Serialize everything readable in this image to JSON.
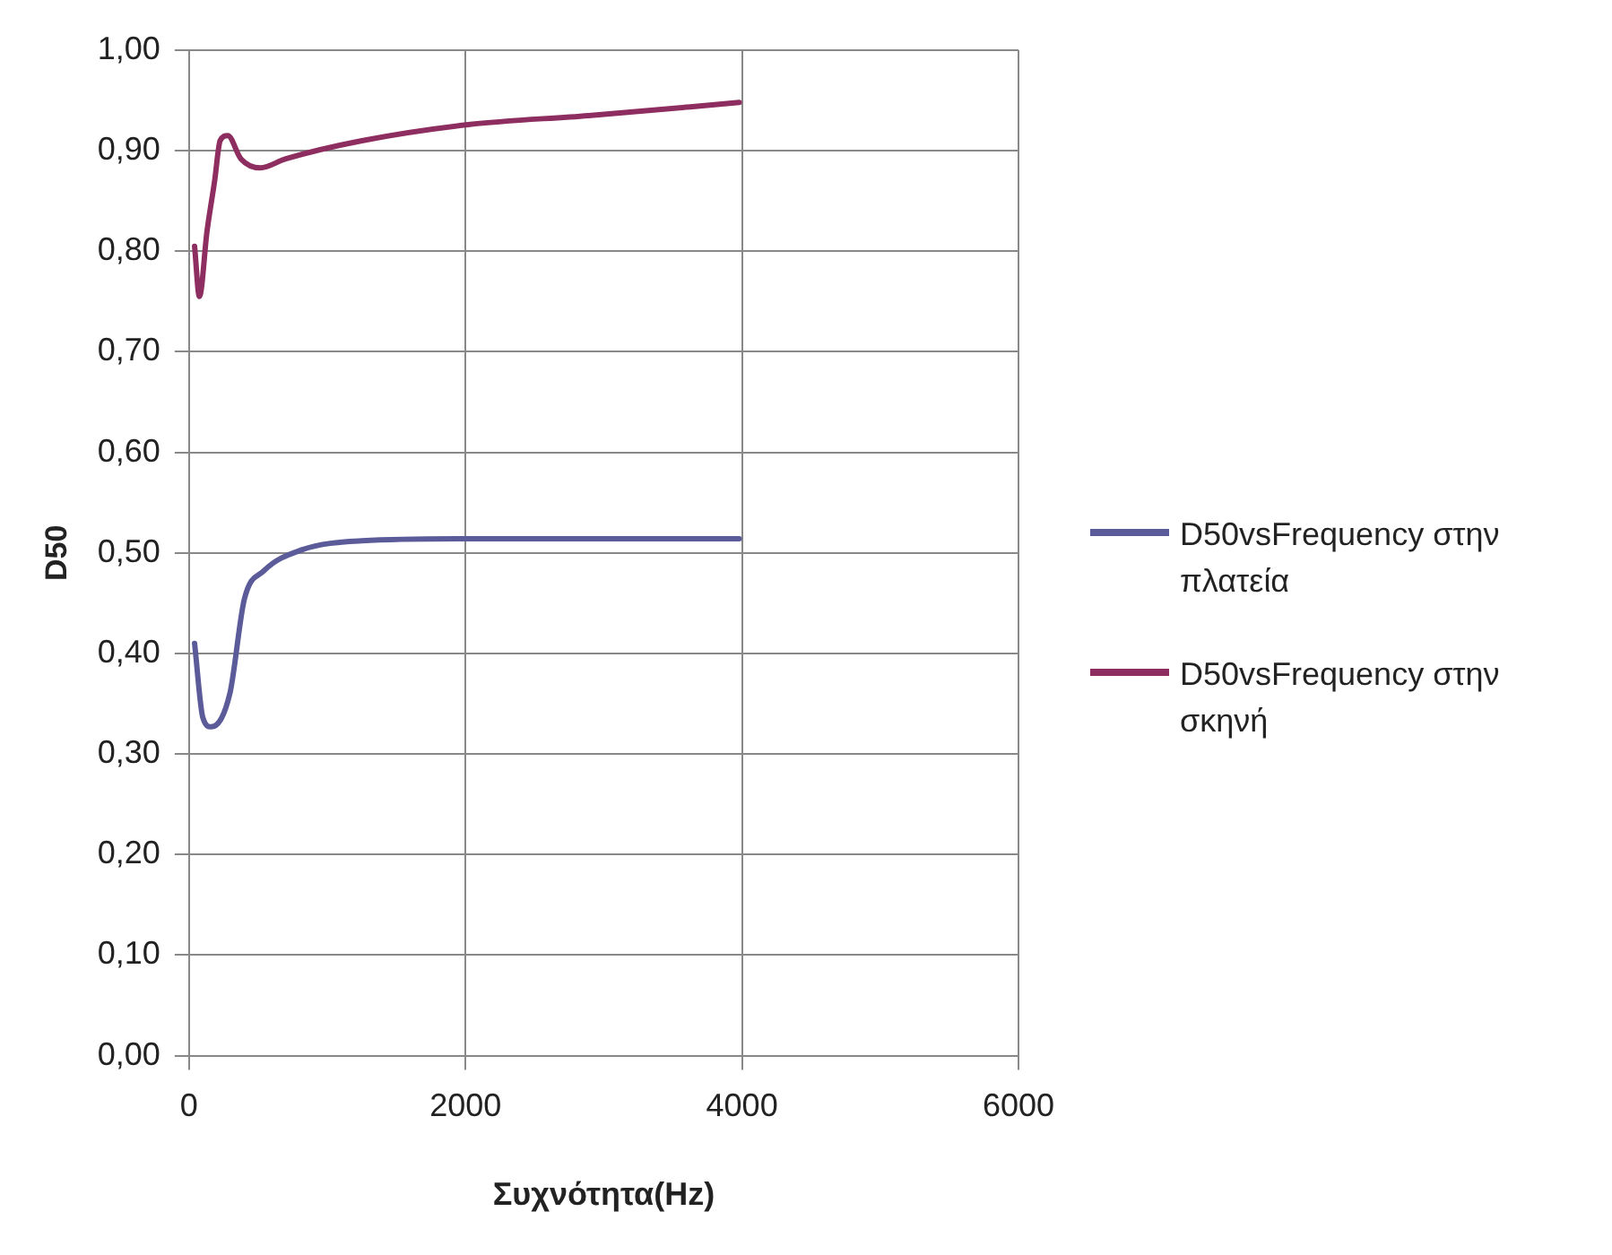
{
  "chart_data": {
    "type": "line",
    "xlabel": "Συχνότητα(Hz)",
    "ylabel": "D50",
    "xlim": [
      0,
      6000
    ],
    "xticks": [
      0,
      2000,
      4000,
      6000
    ],
    "ylim": [
      0,
      1
    ],
    "yticks": [
      {
        "value": 0,
        "label": "0,00"
      },
      {
        "value": 0.1,
        "label": "0,10"
      },
      {
        "value": 0.2,
        "label": "0,20"
      },
      {
        "value": 0.3,
        "label": "0,30"
      },
      {
        "value": 0.4,
        "label": "0,40"
      },
      {
        "value": 0.5,
        "label": "0,50"
      },
      {
        "value": 0.6,
        "label": "0,60"
      },
      {
        "value": 0.7,
        "label": "0,70"
      },
      {
        "value": 0.8,
        "label": "0,80"
      },
      {
        "value": 0.9,
        "label": "0,90"
      },
      {
        "value": 1,
        "label": "1,00"
      }
    ],
    "grid": true,
    "legend": "right",
    "marker": "none",
    "line_style": "solid",
    "series": [
      {
        "name": "D50vsFrequency στην πλατεία",
        "color": "#5b5b9a",
        "x": [
          40,
          100,
          160,
          295,
          400,
          540,
          815,
          1250,
          2000,
          3980
        ],
        "values": [
          0.41,
          0.336,
          0.327,
          0.36,
          0.454,
          0.482,
          0.503,
          0.512,
          0.514,
          0.514
        ]
      },
      {
        "name": "D50vsFrequency στην σκηνή",
        "color": "#8e2d5f",
        "x": [
          40,
          75,
          130,
          185,
          225,
          280,
          375,
          515,
          700,
          1250,
          2020,
          2890,
          3980
        ],
        "values": [
          0.805,
          0.755,
          0.82,
          0.87,
          0.91,
          0.915,
          0.892,
          0.883,
          0.892,
          0.91,
          0.926,
          0.935,
          0.948
        ]
      }
    ]
  }
}
